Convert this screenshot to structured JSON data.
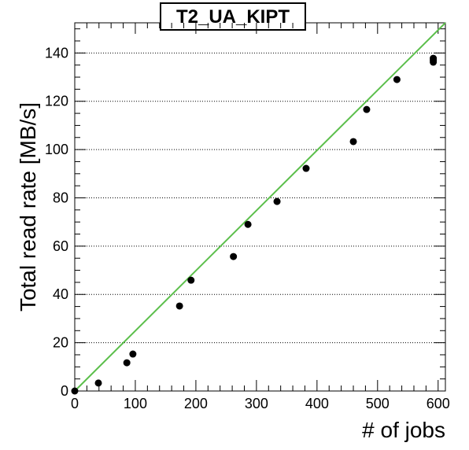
{
  "chart_data": {
    "type": "scatter",
    "title": "T2_UA_KIPT",
    "xlabel": "# of jobs",
    "ylabel": "Total read rate [MB/s]",
    "series": [
      {
        "color": "#000000",
        "x": [
          0,
          39,
          86,
          96,
          173,
          192,
          262,
          286,
          334,
          382,
          460,
          482,
          532,
          592,
          592,
          592
        ],
        "values": [
          0,
          3.3,
          11.7,
          15.3,
          35.2,
          45.9,
          55.7,
          69,
          78.5,
          92.2,
          103.3,
          116.6,
          129,
          136.2,
          137.8,
          137
        ]
      }
    ],
    "fit_line": {
      "color": "#5cbf4c",
      "x": [
        0,
        612
      ],
      "values": [
        0,
        152.5
      ]
    },
    "xlim": [
      0,
      612
    ],
    "ylim": [
      0,
      152.5
    ],
    "xticks": [
      0,
      100,
      200,
      300,
      400,
      500,
      600
    ],
    "yticks": [
      0,
      20,
      40,
      60,
      80,
      100,
      120,
      140
    ],
    "grid": "y"
  }
}
